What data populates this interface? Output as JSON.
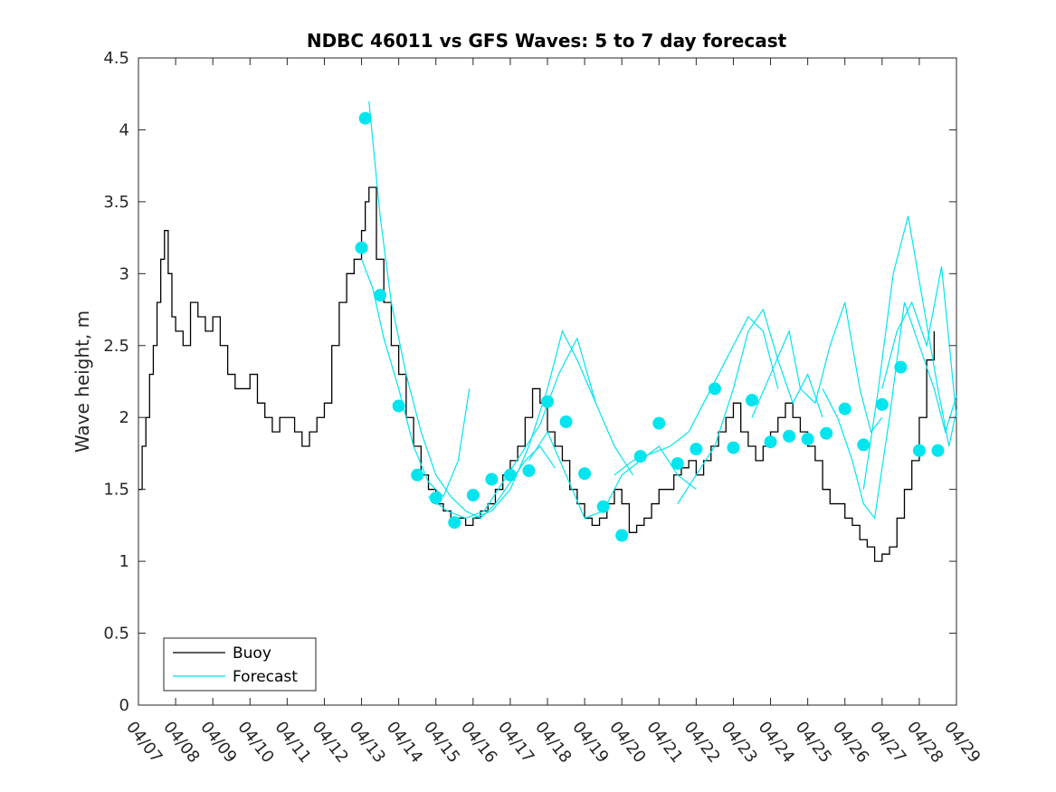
{
  "chart_data": {
    "type": "line",
    "title": "NDBC 46011 vs GFS Waves: 5 to 7 day forecast",
    "ylabel": "Wave height, m",
    "xlabel": "",
    "xlim": [
      0,
      22
    ],
    "ylim": [
      0,
      4.5
    ],
    "x_tick_labels": [
      "04/07",
      "04/08",
      "04/09",
      "04/10",
      "04/11",
      "04/12",
      "04/13",
      "04/14",
      "04/15",
      "04/16",
      "04/17",
      "04/18",
      "04/19",
      "04/20",
      "04/21",
      "04/22",
      "04/23",
      "04/24",
      "04/25",
      "04/26",
      "04/27",
      "04/28",
      "04/29"
    ],
    "y_ticks": [
      0,
      0.5,
      1,
      1.5,
      2,
      2.5,
      3,
      3.5,
      4,
      4.5
    ],
    "y_tick_labels": [
      "0",
      "0.5",
      "1",
      "1.5",
      "2",
      "2.5",
      "3",
      "3.5",
      "4",
      "4.5"
    ],
    "grid": false,
    "legend": {
      "position": "bottom-left",
      "entries": [
        "Buoy",
        "Forecast"
      ]
    },
    "colors": {
      "buoy": "#000000",
      "forecast": "#00e5ee",
      "axis": "#262626"
    },
    "series": [
      {
        "name": "Buoy",
        "x": [
          0,
          0.1,
          0.2,
          0.3,
          0.4,
          0.5,
          0.6,
          0.7,
          0.8,
          0.9,
          1.0,
          1.2,
          1.4,
          1.6,
          1.8,
          2.0,
          2.2,
          2.4,
          2.6,
          2.8,
          3.0,
          3.2,
          3.4,
          3.6,
          3.8,
          4.0,
          4.2,
          4.4,
          4.6,
          4.8,
          5.0,
          5.2,
          5.4,
          5.6,
          5.8,
          6.0,
          6.1,
          6.2,
          6.4,
          6.6,
          6.8,
          7.0,
          7.2,
          7.4,
          7.6,
          7.8,
          8.0,
          8.2,
          8.4,
          8.6,
          8.8,
          9.0,
          9.2,
          9.4,
          9.6,
          9.8,
          10.0,
          10.2,
          10.4,
          10.6,
          10.8,
          11.0,
          11.2,
          11.4,
          11.6,
          11.8,
          12.0,
          12.2,
          12.4,
          12.6,
          12.8,
          13.0,
          13.2,
          13.4,
          13.6,
          13.8,
          14.0,
          14.2,
          14.4,
          14.6,
          14.8,
          15.0,
          15.2,
          15.4,
          15.6,
          15.8,
          16.0,
          16.2,
          16.4,
          16.6,
          16.8,
          17.0,
          17.2,
          17.4,
          17.6,
          17.8,
          18.0,
          18.2,
          18.4,
          18.6,
          18.8,
          19.0,
          19.2,
          19.4,
          19.6,
          19.8,
          20.0,
          20.2,
          20.4,
          20.6,
          20.8,
          21.0,
          21.2,
          21.4
        ],
        "values": [
          1.5,
          1.8,
          2.0,
          2.3,
          2.5,
          2.8,
          3.1,
          3.3,
          3.0,
          2.7,
          2.6,
          2.5,
          2.8,
          2.7,
          2.6,
          2.7,
          2.5,
          2.3,
          2.2,
          2.2,
          2.3,
          2.1,
          2.0,
          1.9,
          2.0,
          2.0,
          1.9,
          1.8,
          1.9,
          2.0,
          2.1,
          2.5,
          2.8,
          3.0,
          3.1,
          3.3,
          3.5,
          3.6,
          3.1,
          2.8,
          2.5,
          2.3,
          2.0,
          1.8,
          1.6,
          1.5,
          1.4,
          1.35,
          1.3,
          1.3,
          1.25,
          1.3,
          1.35,
          1.4,
          1.5,
          1.6,
          1.7,
          1.8,
          2.0,
          2.2,
          2.1,
          1.9,
          1.8,
          1.7,
          1.5,
          1.4,
          1.3,
          1.25,
          1.3,
          1.4,
          1.5,
          1.4,
          1.2,
          1.25,
          1.3,
          1.4,
          1.5,
          1.5,
          1.6,
          1.65,
          1.7,
          1.6,
          1.7,
          1.8,
          1.9,
          2.0,
          2.1,
          1.9,
          1.8,
          1.7,
          1.8,
          1.9,
          2.0,
          2.1,
          2.0,
          1.9,
          1.8,
          1.7,
          1.5,
          1.4,
          1.4,
          1.3,
          1.25,
          1.15,
          1.1,
          1.0,
          1.05,
          1.1,
          1.3,
          1.5,
          1.7,
          2.0,
          2.4,
          2.6
        ]
      },
      {
        "name": "Forecast",
        "markers": {
          "x": [
            6.0,
            6.1,
            6.5,
            7.0,
            7.5,
            8.0,
            8.5,
            9.0,
            9.5,
            10.0,
            10.5,
            11.0,
            11.5,
            12.0,
            12.5,
            13.0,
            13.5,
            14.0,
            14.5,
            15.0,
            15.5,
            16.0,
            16.5,
            17.0,
            17.5,
            18.0,
            18.5,
            19.0,
            19.5,
            20.0,
            20.5,
            21.0,
            21.5
          ],
          "values": [
            3.18,
            4.08,
            2.85,
            2.08,
            1.6,
            1.44,
            1.27,
            1.46,
            1.57,
            1.6,
            1.63,
            2.11,
            1.97,
            1.61,
            1.38,
            1.18,
            1.73,
            1.96,
            1.68,
            1.78,
            2.2,
            1.79,
            2.12,
            1.83,
            1.87,
            1.85,
            1.89,
            2.06,
            1.81,
            2.09,
            2.35,
            1.77,
            1.77
          ]
        }
      }
    ],
    "forecast_traces": [
      {
        "x": [
          6.0,
          6.3,
          6.6,
          7.0,
          7.4,
          7.8,
          8.2,
          8.6,
          8.9
        ],
        "values": [
          3.1,
          2.9,
          2.55,
          2.2,
          1.8,
          1.55,
          1.45,
          1.7,
          2.2
        ]
      },
      {
        "x": [
          6.2,
          6.5,
          6.8,
          7.2,
          7.6,
          8.0,
          8.4,
          8.8,
          9.2,
          9.6,
          10.0,
          10.4,
          10.8,
          11.2
        ],
        "values": [
          4.2,
          3.4,
          2.8,
          2.3,
          1.9,
          1.6,
          1.45,
          1.35,
          1.3,
          1.4,
          1.55,
          1.7,
          1.8,
          1.65
        ]
      },
      {
        "x": [
          7.8,
          8.3,
          8.8,
          9.3,
          9.8,
          10.3,
          10.8,
          11.3,
          11.8,
          12.3
        ],
        "values": [
          1.45,
          1.35,
          1.3,
          1.35,
          1.55,
          1.75,
          1.95,
          2.3,
          2.55,
          2.1
        ]
      },
      {
        "x": [
          9.0,
          9.5,
          10.0,
          10.5,
          11.0,
          11.4,
          11.8,
          12.3,
          12.8,
          13.3
        ],
        "values": [
          1.3,
          1.35,
          1.5,
          1.8,
          2.2,
          2.6,
          2.4,
          2.1,
          1.8,
          1.6
        ]
      },
      {
        "x": [
          10.5,
          11.0,
          11.5,
          12.0,
          12.5,
          13.0,
          13.5,
          14.0,
          14.5,
          15.0
        ],
        "values": [
          1.7,
          1.9,
          1.6,
          1.3,
          1.35,
          1.6,
          1.7,
          1.8,
          1.6,
          1.5
        ]
      },
      {
        "x": [
          12.8,
          13.3,
          13.8,
          14.3,
          14.8,
          15.2,
          15.6,
          16.0,
          16.4,
          16.8,
          17.2
        ],
        "values": [
          1.6,
          1.7,
          1.75,
          1.8,
          1.9,
          2.1,
          2.3,
          2.5,
          2.7,
          2.6,
          2.2
        ]
      },
      {
        "x": [
          14.5,
          15.0,
          15.5,
          16.0,
          16.4,
          16.8,
          17.2,
          17.6,
          18.0,
          18.4
        ],
        "values": [
          1.4,
          1.6,
          1.8,
          2.2,
          2.6,
          2.75,
          2.4,
          2.1,
          2.3,
          2.0
        ]
      },
      {
        "x": [
          16.5,
          17.0,
          17.5,
          17.8,
          18.2,
          18.6,
          19.0,
          19.4,
          19.7,
          20.0
        ],
        "values": [
          2.0,
          2.3,
          2.6,
          2.2,
          2.1,
          2.5,
          2.8,
          2.2,
          1.9,
          2.0
        ]
      },
      {
        "x": [
          18.4,
          18.8,
          19.2,
          19.5,
          19.8,
          20.2,
          20.6,
          21.0,
          21.4,
          21.7,
          22.0
        ],
        "values": [
          2.2,
          2.0,
          1.7,
          1.4,
          1.3,
          2.0,
          2.8,
          2.5,
          2.2,
          1.9,
          2.15
        ]
      },
      {
        "x": [
          19.5,
          19.9,
          20.3,
          20.7,
          21.1,
          21.5,
          21.8,
          22.0
        ],
        "values": [
          1.5,
          2.2,
          3.0,
          3.4,
          2.8,
          2.2,
          1.8,
          2.05
        ]
      },
      {
        "x": [
          20.0,
          20.4,
          20.8,
          21.2,
          21.6,
          22.0
        ],
        "values": [
          2.2,
          2.6,
          2.8,
          2.5,
          3.05,
          2.0
        ]
      }
    ]
  }
}
